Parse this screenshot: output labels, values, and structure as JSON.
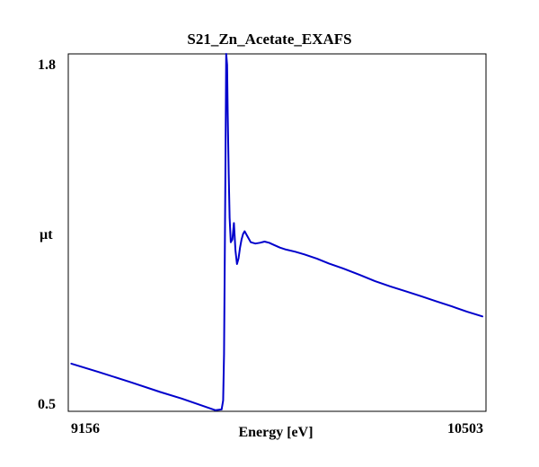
{
  "chart_data": {
    "type": "line",
    "title": "S21_Zn_Acetate_EXAFS",
    "xlabel": "Energy [eV]",
    "ylabel": "µt",
    "x_tick_labels": [
      "9156",
      "10503"
    ],
    "y_tick_labels": [
      "1.8",
      "0.5"
    ],
    "xlim": [
      9156,
      10503
    ],
    "ylim": [
      0.5,
      1.8
    ],
    "grid": false,
    "line_color": "#0000cc",
    "series": [
      {
        "x": [
          9160,
          9250,
          9350,
          9450,
          9520,
          9630,
          9650,
          9655,
          9658,
          9660,
          9663,
          9665,
          9668,
          9670,
          9673,
          9676,
          9680,
          9685,
          9690,
          9695,
          9700,
          9705,
          9710,
          9715,
          9720,
          9725,
          9735,
          9745,
          9760,
          9775,
          9790,
          9805,
          9820,
          9840,
          9860,
          9890,
          9920,
          9960,
          10000,
          10050,
          10100,
          10150,
          10200,
          10250,
          10300,
          10350,
          10400,
          10450,
          10500
        ],
        "y": [
          0.665,
          0.634,
          0.598,
          0.561,
          0.537,
          0.494,
          0.497,
          0.53,
          0.7,
          1.0,
          1.45,
          1.8,
          1.76,
          1.58,
          1.36,
          1.2,
          1.11,
          1.12,
          1.18,
          1.08,
          1.03,
          1.05,
          1.09,
          1.12,
          1.14,
          1.15,
          1.13,
          1.11,
          1.105,
          1.108,
          1.112,
          1.108,
          1.1,
          1.09,
          1.083,
          1.075,
          1.065,
          1.05,
          1.032,
          1.012,
          0.99,
          0.967,
          0.948,
          0.93,
          0.912,
          0.893,
          0.875,
          0.855,
          0.838
        ]
      }
    ]
  }
}
